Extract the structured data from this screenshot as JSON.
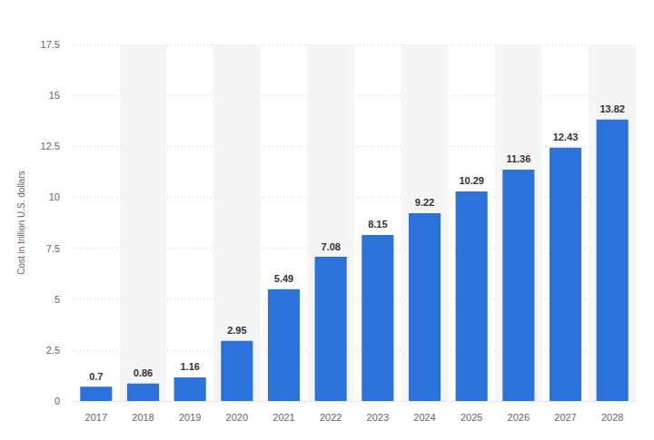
{
  "chart_data": {
    "type": "bar",
    "y_label": "Cost in trillion U.S. dollars",
    "categories": [
      "2017",
      "2018",
      "2019",
      "2020",
      "2021",
      "2022",
      "2023",
      "2024",
      "2025",
      "2026",
      "2027",
      "2028"
    ],
    "values": [
      0.7,
      0.86,
      1.16,
      2.95,
      5.49,
      7.08,
      8.15,
      9.22,
      10.29,
      11.36,
      12.43,
      13.82
    ],
    "color": "#2b73db",
    "ylim": [
      0,
      17.5
    ],
    "yticks": [
      0,
      2.5,
      5,
      7.5,
      10,
      12.5,
      15,
      17.5
    ],
    "grid": true,
    "data_labels": true
  }
}
